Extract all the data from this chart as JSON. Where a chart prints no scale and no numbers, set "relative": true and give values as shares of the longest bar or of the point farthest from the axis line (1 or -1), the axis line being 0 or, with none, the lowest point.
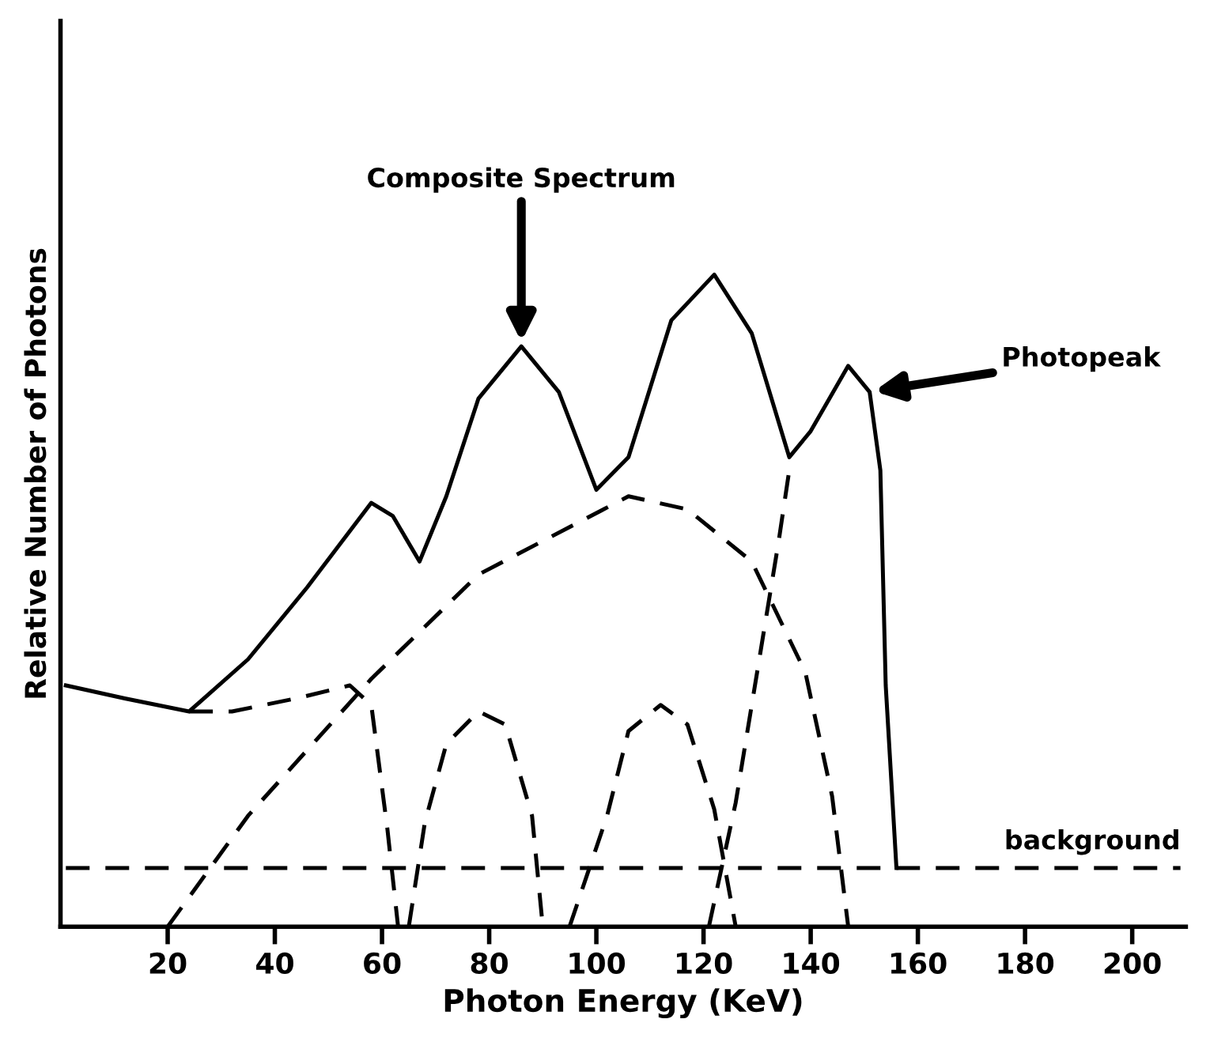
{
  "chart_data": {
    "type": "line",
    "relative": true,
    "xlabel": "Photon Energy (KeV)",
    "ylabel": "Relative Number of Photons",
    "xlim": [
      0,
      210
    ],
    "xticks": [
      20,
      40,
      60,
      80,
      100,
      120,
      140,
      160,
      180,
      200
    ],
    "annotations": [
      {
        "text": "Composite Spectrum",
        "x": 86,
        "y": 0.89
      },
      {
        "text": "Photopeak",
        "x": 151,
        "y": 0.82
      }
    ],
    "grid": false,
    "legend": false,
    "marker": "none",
    "series": [
      {
        "color": "#000000",
        "line_style": "solid",
        "x": [
          1,
          12,
          24,
          35,
          46,
          58,
          62,
          67,
          72,
          78,
          86,
          93,
          100,
          106,
          114,
          122,
          129,
          136,
          140,
          147,
          151,
          153,
          154,
          156
        ],
        "values": [
          0.37,
          0.35,
          0.33,
          0.41,
          0.52,
          0.65,
          0.63,
          0.56,
          0.66,
          0.81,
          0.89,
          0.82,
          0.67,
          0.72,
          0.93,
          1,
          0.91,
          0.72,
          0.76,
          0.86,
          0.82,
          0.7,
          0.37,
          0.09
        ]
      },
      {
        "name": "background",
        "color": "#000000",
        "line_style": "dashed",
        "x": [
          1,
          156,
          209
        ],
        "values": [
          0.09,
          0.09,
          0.09
        ]
      },
      {
        "color": "#000000",
        "line_style": "dashed",
        "x": [
          20,
          35,
          58,
          78,
          106,
          117,
          129,
          139,
          144,
          147
        ],
        "values": [
          0,
          0.17,
          0.38,
          0.54,
          0.66,
          0.64,
          0.56,
          0.39,
          0.2,
          0
        ]
      },
      {
        "color": "#000000",
        "line_style": "dashed",
        "x": [
          24,
          32,
          44,
          54,
          58,
          61,
          63
        ],
        "values": [
          0.33,
          0.33,
          0.35,
          0.37,
          0.34,
          0.15,
          0
        ]
      },
      {
        "color": "#000000",
        "line_style": "dashed",
        "x": [
          65,
          68,
          72,
          78,
          83,
          88,
          90
        ],
        "values": [
          0,
          0.16,
          0.28,
          0.33,
          0.31,
          0.17,
          0
        ]
      },
      {
        "color": "#000000",
        "line_style": "dashed",
        "x": [
          95,
          102,
          106,
          112,
          117,
          122,
          126
        ],
        "values": [
          0,
          0.17,
          0.3,
          0.34,
          0.31,
          0.18,
          0
        ]
      },
      {
        "color": "#000000",
        "line_style": "dashed",
        "x": [
          121,
          126,
          131,
          134,
          136
        ],
        "values": [
          0,
          0.19,
          0.44,
          0.59,
          0.7
        ]
      }
    ]
  }
}
